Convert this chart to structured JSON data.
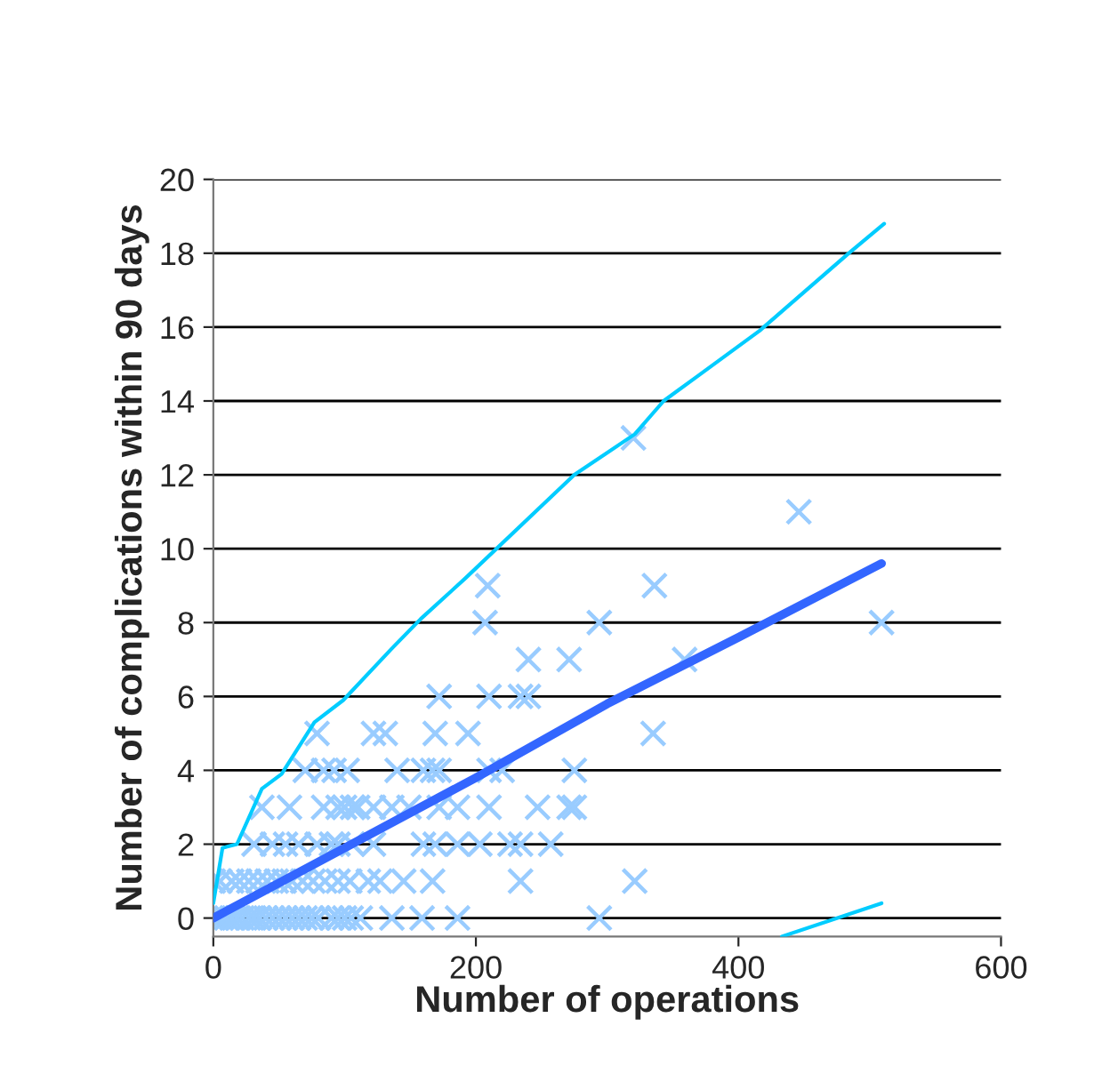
{
  "chart_data": {
    "type": "scatter",
    "xlabel": "Number of operations",
    "ylabel": "Number of complications within 90 days",
    "xlim": [
      0,
      600
    ],
    "xticks": [
      0,
      200,
      400,
      600
    ],
    "ylim": [
      -0.5,
      20
    ],
    "yticks": [
      0,
      2,
      4,
      6,
      8,
      10,
      12,
      14,
      16,
      18,
      20
    ],
    "grid": "y",
    "legend": false,
    "series": [
      {
        "marker": "cross",
        "color": "#99ccff",
        "x": [
          0,
          3,
          6,
          10,
          14,
          18,
          22,
          27,
          31,
          35,
          40,
          45,
          50,
          55,
          60,
          65,
          70,
          75,
          80,
          90,
          95,
          100,
          105,
          112,
          136,
          159,
          186,
          294,
          0,
          5,
          14,
          20,
          27,
          34,
          41,
          48,
          54,
          60,
          68,
          76,
          85,
          95,
          104,
          118,
          127,
          145,
          167,
          234,
          321,
          31,
          45,
          55,
          65,
          79,
          90,
          95,
          106,
          122,
          160,
          169,
          186,
          203,
          226,
          234,
          257,
          37,
          58,
          84,
          95,
          100,
          106,
          110,
          122,
          136,
          149,
          172,
          186,
          210,
          247,
          271,
          275,
          70,
          84,
          92,
          102,
          140,
          160,
          167,
          172,
          210,
          220,
          275,
          79,
          122,
          131,
          169,
          194,
          335,
          172,
          210,
          234,
          240,
          240,
          271,
          359,
          207,
          294,
          509,
          209,
          336,
          446,
          320
        ],
        "values": [
          0,
          0,
          0,
          0,
          0,
          0,
          0,
          0,
          0,
          0,
          0,
          0,
          0,
          0,
          0,
          0,
          0,
          0,
          0,
          0,
          0,
          0,
          0,
          0,
          0,
          0,
          0,
          0,
          1,
          1,
          1,
          1,
          1,
          1,
          1,
          1,
          1,
          1,
          1,
          1,
          1,
          1,
          1,
          1,
          1,
          1,
          1,
          1,
          1,
          2,
          2,
          2,
          2,
          2,
          2,
          2,
          2,
          2,
          2,
          2,
          2,
          2,
          2,
          2,
          2,
          3,
          3,
          3,
          3,
          3,
          3,
          3,
          3,
          3,
          3,
          3,
          3,
          3,
          3,
          3,
          3,
          4,
          4,
          4,
          4,
          4,
          4,
          4,
          4,
          4,
          4,
          4,
          5,
          5,
          5,
          5,
          5,
          5,
          6,
          6,
          6,
          6,
          7,
          7,
          7,
          8,
          8,
          8,
          9,
          9,
          11,
          13
        ]
      },
      {
        "type": "line",
        "marker": "none",
        "line_style": "solid",
        "color": "#00ccff",
        "x": [
          0,
          7,
          18,
          37,
          52,
          77,
          99,
          136,
          158,
          192,
          275,
          321,
          343,
          370,
          416,
          484,
          511
        ],
        "values": [
          0.4,
          1.9,
          2.0,
          3.5,
          3.9,
          5.3,
          5.9,
          7.3,
          8.1,
          9.2,
          12.0,
          13.1,
          14.0,
          14.7,
          15.9,
          18.0,
          18.8
        ]
      },
      {
        "type": "line",
        "marker": "none",
        "line_style": "solid",
        "color": "#3366ff",
        "x": [
          0,
          100,
          200,
          300,
          400,
          509
        ],
        "values": [
          0,
          1.9,
          3.8,
          5.8,
          7.6,
          9.6
        ]
      },
      {
        "type": "line",
        "marker": "none",
        "line_style": "solid",
        "color": "#00ccff",
        "x": [
          433,
          509
        ],
        "values": [
          -0.5,
          0.4
        ]
      }
    ]
  }
}
